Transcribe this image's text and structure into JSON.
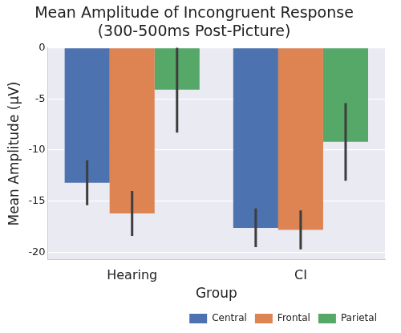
{
  "chart_data": {
    "type": "bar",
    "title": "Mean Amplitude of Incongruent Response\n(300-500ms Post-Picture)",
    "x_label": "Group",
    "y_label": "Mean Amplitude (µV)",
    "categories": [
      "Hearing",
      "CI"
    ],
    "series": [
      {
        "name": "Central",
        "color": "#4c72b0",
        "values": [
          -13.2,
          -17.6
        ],
        "errors": [
          2.2,
          1.9
        ]
      },
      {
        "name": "Frontal",
        "color": "#dd8452",
        "values": [
          -16.2,
          -17.8
        ],
        "errors": [
          2.2,
          1.9
        ]
      },
      {
        "name": "Parietal",
        "color": "#55a868",
        "values": [
          -4.1,
          -9.2
        ],
        "errors": [
          4.2,
          3.8
        ]
      }
    ],
    "ylim": [
      -20.7,
      0
    ],
    "yticks": [
      0,
      -5,
      -10,
      -15,
      -20
    ],
    "grid": true,
    "legend": "lower right"
  }
}
